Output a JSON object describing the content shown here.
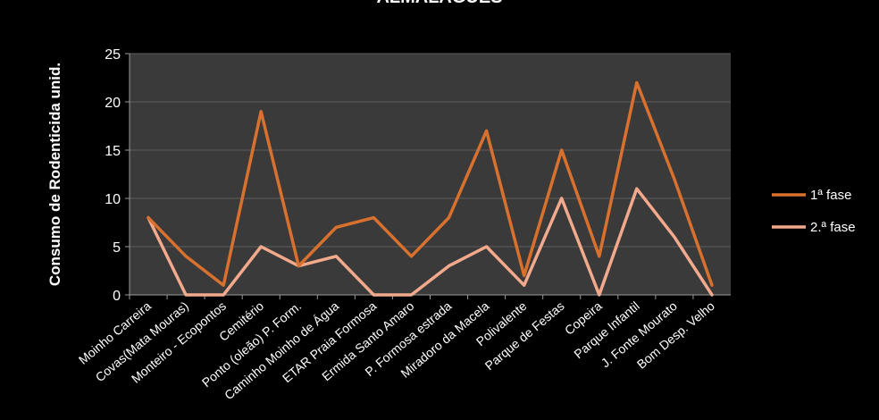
{
  "chart_data": {
    "type": "line",
    "title": "ALMALAGUÊS",
    "ylabel": "Consumo de Rodenticida unid.",
    "xlabel": "",
    "ylim": [
      0,
      25
    ],
    "yticks": [
      0,
      5,
      10,
      15,
      20,
      25
    ],
    "grid": true,
    "legend_position": "right",
    "categories": [
      "Moinho Carreira",
      "Covas(Mata Mouras)",
      "Monteiro - Ecopontos",
      "Cemitério",
      "Ponto (oleão) P. Form.",
      "Caminho Moinho de Água",
      "ETAR Praia Formosa",
      "Ermida Santo Amaro",
      "P. Formosa estrada",
      "Miradoro da Macela",
      "Polivalente",
      "Parque de Festas",
      "Copeira",
      "Parque Infantil",
      "J. Fonte Mourato",
      "Bom Desp. Velho"
    ],
    "series": [
      {
        "name": "1ª fase",
        "color": "#D9712E",
        "values": [
          8,
          4,
          1,
          19,
          3,
          7,
          8,
          4,
          8,
          17,
          2,
          15,
          4,
          22,
          12,
          1
        ]
      },
      {
        "name": "2.ª fase",
        "color": "#F2A98C",
        "values": [
          8,
          0,
          0,
          5,
          3,
          4,
          0,
          0,
          3,
          5,
          1,
          10,
          0,
          11,
          6,
          0
        ]
      }
    ]
  }
}
